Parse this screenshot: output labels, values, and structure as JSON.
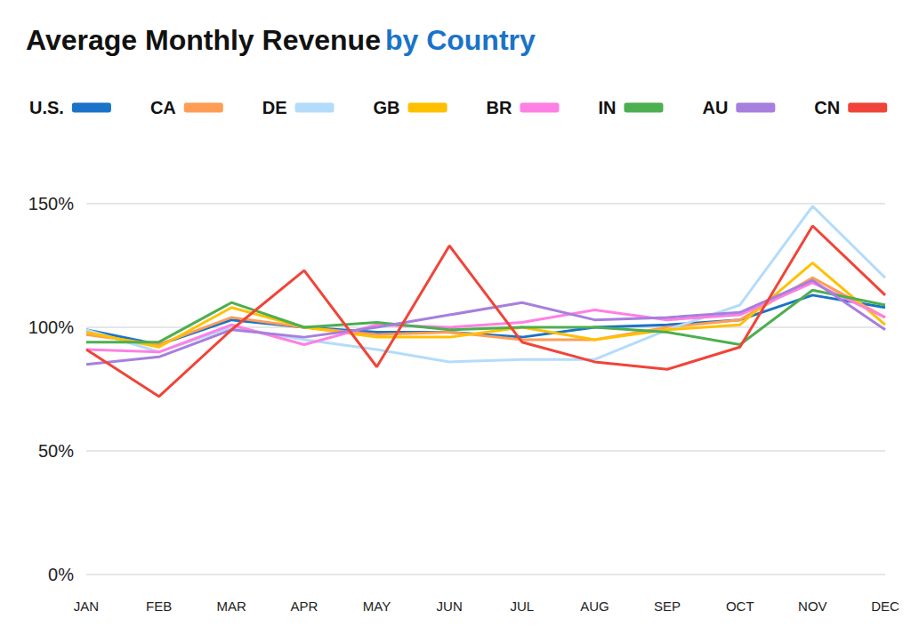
{
  "chart_data": {
    "type": "line",
    "title": "Average Monthly Revenue by Country",
    "categories": [
      "JAN",
      "FEB",
      "MAR",
      "APR",
      "MAY",
      "JUN",
      "JUL",
      "AUG",
      "SEP",
      "OCT",
      "NOV",
      "DEC"
    ],
    "series": [
      {
        "name": "U.S.",
        "color": "#1a73c8",
        "values": [
          99,
          93,
          103,
          100,
          98,
          98,
          96,
          100,
          101,
          103,
          113,
          108
        ]
      },
      {
        "name": "CA",
        "color": "#ff9d55",
        "values": [
          97,
          93,
          104,
          100,
          97,
          98,
          95,
          95,
          100,
          103,
          120,
          104
        ]
      },
      {
        "name": "DE",
        "color": "#b4dcfa",
        "values": [
          99,
          90,
          100,
          95,
          91,
          86,
          87,
          87,
          99,
          109,
          149,
          120
        ]
      },
      {
        "name": "GB",
        "color": "#ffc000",
        "values": [
          98,
          92,
          108,
          100,
          96,
          96,
          100,
          95,
          99,
          101,
          126,
          101
        ]
      },
      {
        "name": "BR",
        "color": "#ff80e3",
        "values": [
          91,
          90,
          101,
          93,
          101,
          100,
          102,
          107,
          103,
          105,
          118,
          104
        ]
      },
      {
        "name": "IN",
        "color": "#4caf50",
        "values": [
          94,
          94,
          110,
          100,
          102,
          99,
          100,
          100,
          98,
          93,
          115,
          109
        ]
      },
      {
        "name": "AU",
        "color": "#a77fdd",
        "values": [
          85,
          88,
          99,
          96,
          100,
          105,
          110,
          103,
          104,
          106,
          119,
          99
        ]
      },
      {
        "name": "CN",
        "color": "#f04438",
        "values": [
          91,
          72,
          99,
          123,
          84,
          133,
          94,
          86,
          83,
          92,
          141,
          113
        ]
      }
    ],
    "ylim": [
      0,
      150
    ],
    "yticks": [
      {
        "value": 0,
        "label": "0%"
      },
      {
        "value": 50,
        "label": "50%"
      },
      {
        "value": 100,
        "label": "100%"
      },
      {
        "value": 150,
        "label": "150%"
      }
    ],
    "grid": true,
    "legend": "top",
    "marker": "none"
  }
}
